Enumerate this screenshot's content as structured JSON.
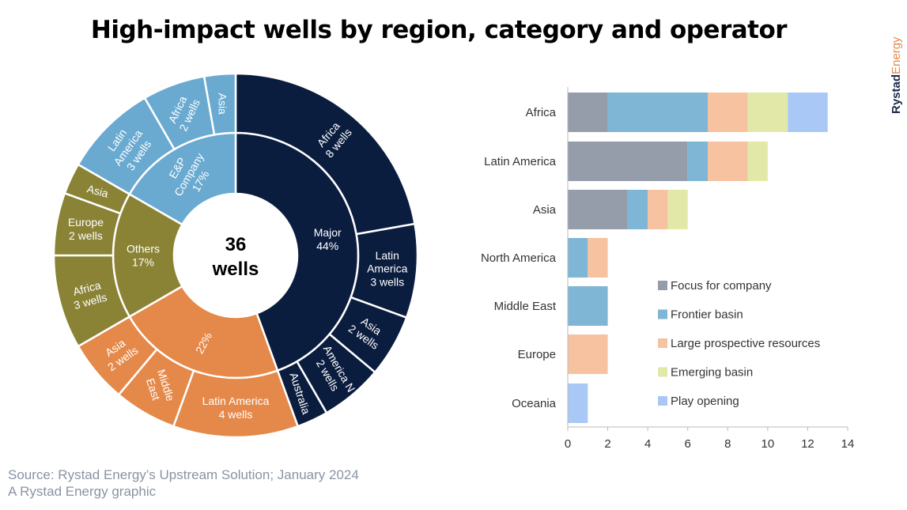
{
  "title": "High-impact wells by region, category and operator",
  "logo": {
    "part1": "Rystad",
    "part2": "Energy"
  },
  "source": {
    "line1": "Source: Rystad Energy’s Upstream Solution; January 2024",
    "line2": "A Rystad Energy graphic"
  },
  "chart_data": [
    {
      "type": "sunburst",
      "center_label": {
        "line1": "36",
        "line2": "wells"
      },
      "total_wells": 36,
      "inner": [
        {
          "name": "Major",
          "pct_label": "44%",
          "wells": 16,
          "color": "#0b1d3f"
        },
        {
          "name": "",
          "pct_label": "22%",
          "wells": 8,
          "color": "#e5894a"
        },
        {
          "name": "Others",
          "pct_label": "17%",
          "wells": 6,
          "color": "#8a8336"
        },
        {
          "name": "E&P Company",
          "pct_label": "17%",
          "wells": 6,
          "color": "#6aaad0"
        }
      ],
      "outer": [
        {
          "parent": 0,
          "region": "Africa",
          "wells": 8,
          "label": "8 wells"
        },
        {
          "parent": 0,
          "region": "Latin America",
          "wells": 3,
          "label": "3 wells"
        },
        {
          "parent": 0,
          "region": "Asia",
          "wells": 2,
          "label": "2 wells"
        },
        {
          "parent": 0,
          "region": "America N",
          "wells": 2,
          "label": "2 wells"
        },
        {
          "parent": 0,
          "region": "Australia",
          "wells": 1,
          "label": ""
        },
        {
          "parent": 1,
          "region": "Latin America",
          "wells": 4,
          "label": "4 wells"
        },
        {
          "parent": 1,
          "region": "Middle East",
          "wells": 2,
          "label": ""
        },
        {
          "parent": 1,
          "region": "Asia",
          "wells": 2,
          "label": "2 wells"
        },
        {
          "parent": 2,
          "region": "Africa",
          "wells": 3,
          "label": "3 wells"
        },
        {
          "parent": 2,
          "region": "Europe",
          "wells": 2,
          "label": "2 wells"
        },
        {
          "parent": 2,
          "region": "Asia",
          "wells": 1,
          "label": ""
        },
        {
          "parent": 3,
          "region": "Latin America",
          "wells": 3,
          "label": "3 wells"
        },
        {
          "parent": 3,
          "region": "Africa",
          "wells": 2,
          "label": "2 wells"
        },
        {
          "parent": 3,
          "region": "Asia",
          "wells": 1,
          "label": ""
        }
      ]
    },
    {
      "type": "bar",
      "orientation": "horizontal",
      "stacked": true,
      "categories": [
        "Africa",
        "Latin America",
        "Asia",
        "North America",
        "Middle East",
        "Europe",
        "Oceania"
      ],
      "series": [
        {
          "name": "Focus for company",
          "color": "#959dab",
          "values": [
            2,
            6,
            3,
            0,
            0,
            0,
            0
          ]
        },
        {
          "name": "Frontier basin",
          "color": "#7fb5d5",
          "values": [
            5,
            1,
            1,
            1,
            2,
            0,
            0
          ]
        },
        {
          "name": "Large prospective resources",
          "color": "#f6c2a0",
          "values": [
            2,
            2,
            1,
            1,
            0,
            2,
            0
          ]
        },
        {
          "name": "Emerging basin",
          "color": "#e2e9a8",
          "values": [
            2,
            1,
            1,
            0,
            0,
            0,
            0
          ]
        },
        {
          "name": "Play opening",
          "color": "#a9c8f5",
          "values": [
            2,
            0,
            0,
            0,
            0,
            0,
            1
          ]
        }
      ],
      "xlim": [
        0,
        14
      ],
      "xticks": [
        "0",
        "2",
        "4",
        "6",
        "8",
        "10",
        "12",
        "14"
      ],
      "legend": "center-right",
      "grid": false
    }
  ]
}
